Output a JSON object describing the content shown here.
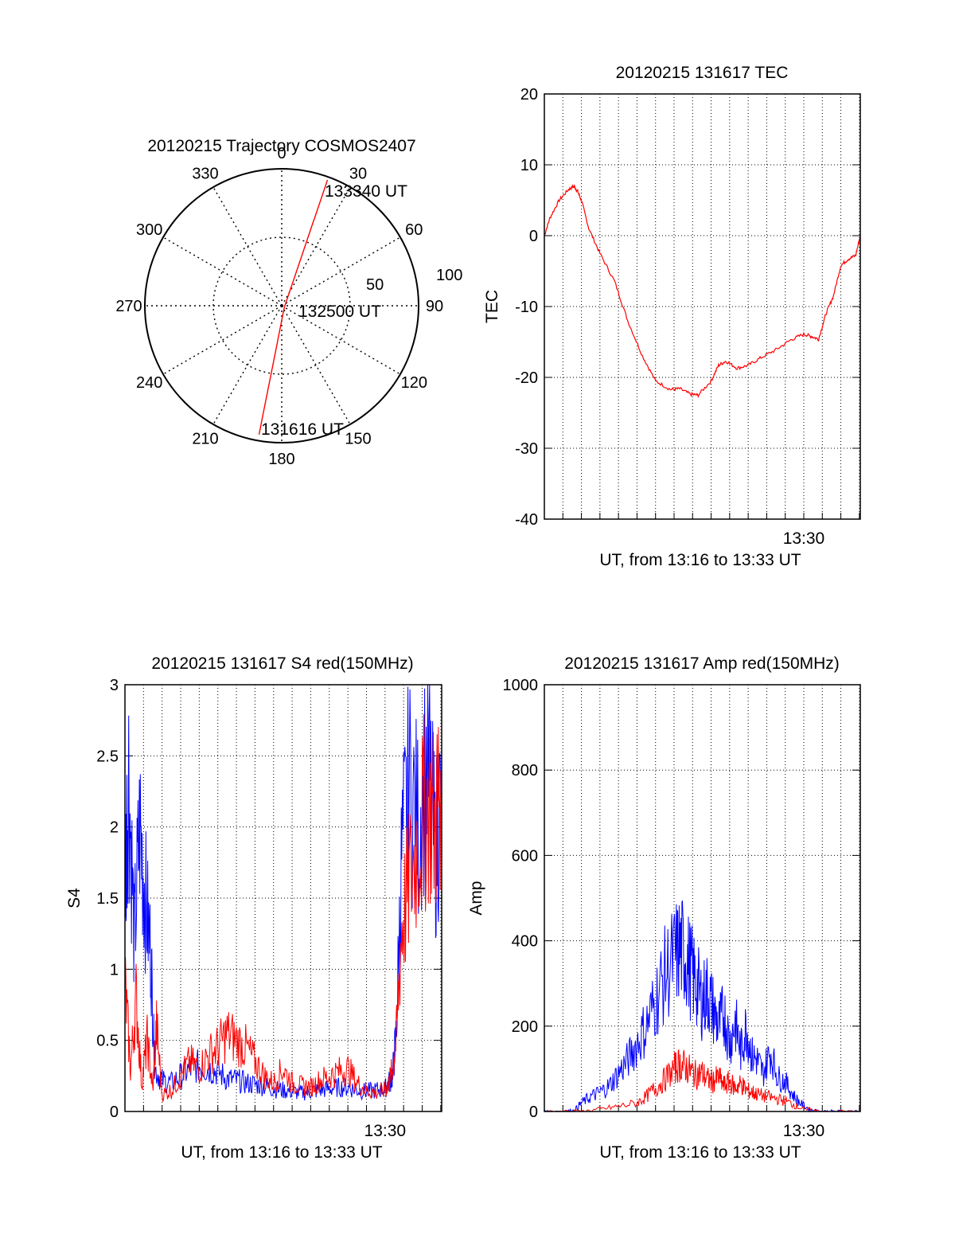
{
  "colors": {
    "red": "#ff0000",
    "blue": "#0000ff",
    "axis": "#000000",
    "grid": "#000000"
  },
  "chart_data": [
    {
      "type": "polar",
      "title": "20120215 Trajectory COSMOS2407",
      "angle_ticks": [
        "0",
        "30",
        "60",
        "90",
        "120",
        "150",
        "180",
        "210",
        "240",
        "270",
        "300",
        "330"
      ],
      "radius_ticks": [
        "50",
        "100"
      ],
      "track": {
        "color": "red",
        "points": [
          {
            "az": 190,
            "el": 4,
            "label": "131616 UT"
          },
          {
            "az": 120,
            "el": 88,
            "label": "132500 UT"
          },
          {
            "az": 20,
            "el": 2,
            "label": "133340 UT"
          }
        ]
      }
    },
    {
      "type": "line",
      "title": "20120215 131617 TEC",
      "xlabel": "UT, from 13:16 to 13:33 UT",
      "ylabel": "TEC",
      "x_unit": "minutes after 13:16",
      "xlim": [
        0,
        17.05
      ],
      "ylim": [
        -40,
        20
      ],
      "yticks": [
        20,
        10,
        0,
        -10,
        -20,
        -30,
        -40
      ],
      "xticks": [
        {
          "x": 14,
          "label": "13:30"
        }
      ],
      "grid": true,
      "series": [
        {
          "color": "red",
          "x": [
            0,
            0.3,
            0.8,
            1.3,
            1.6,
            1.8,
            2.0,
            2.4,
            3.0,
            3.8,
            4.5,
            5.3,
            6.0,
            6.8,
            7.3,
            7.9,
            8.3,
            9.0,
            9.4,
            9.8,
            10.4,
            11.0,
            11.7,
            12.5,
            13.3,
            14.0,
            14.4,
            14.8,
            15.2,
            15.6,
            16.0,
            16.4,
            16.8,
            17.05
          ],
          "values": [
            0,
            2.5,
            5,
            6.5,
            7,
            6.2,
            5,
            1,
            -2.5,
            -6.5,
            -12,
            -17,
            -20.5,
            -21.7,
            -21.6,
            -22.4,
            -22.5,
            -20.5,
            -18.3,
            -17.7,
            -18.7,
            -18.3,
            -17.2,
            -16.1,
            -14.7,
            -13.9,
            -14.2,
            -14.6,
            -11,
            -8.5,
            -4.2,
            -3.3,
            -2.8,
            0
          ]
        }
      ]
    },
    {
      "type": "line",
      "title": "20120215 131617 S4 red(150MHz)",
      "xlabel": "UT, from 13:16 to 13:33 UT",
      "ylabel": "S4",
      "x_unit": "minutes after 13:16",
      "xlim": [
        0,
        17.05
      ],
      "ylim": [
        0,
        3
      ],
      "yticks": [
        3,
        2.5,
        2,
        1.5,
        1,
        0.5,
        0
      ],
      "xticks": [
        {
          "x": 14,
          "label": "13:30"
        }
      ],
      "grid": true,
      "series": [
        {
          "color": "blue",
          "x": [
            0,
            0.2,
            0.5,
            0.8,
            1.1,
            1.4,
            1.6,
            2.0,
            2.5,
            3.0,
            3.5,
            4.0,
            4.5,
            5.0,
            5.5,
            6.0,
            6.5,
            7.0,
            7.5,
            8.0,
            8.5,
            9.0,
            9.5,
            10.0,
            10.5,
            11.0,
            11.5,
            12.0,
            12.5,
            13.0,
            13.5,
            14.0,
            14.2,
            14.4,
            14.6,
            14.9,
            15.3,
            15.8,
            16.3,
            16.7,
            17.0
          ],
          "values": [
            1.6,
            2.4,
            1.2,
            2.0,
            1.5,
            1.1,
            0.3,
            0.22,
            0.2,
            0.25,
            0.3,
            0.32,
            0.3,
            0.28,
            0.23,
            0.22,
            0.2,
            0.19,
            0.18,
            0.16,
            0.15,
            0.14,
            0.13,
            0.14,
            0.15,
            0.16,
            0.17,
            0.17,
            0.15,
            0.14,
            0.15,
            0.16,
            0.2,
            0.25,
            0.55,
            1.8,
            2.3,
            2.0,
            2.5,
            1.8,
            2.2
          ]
        },
        {
          "color": "red",
          "x": [
            0,
            0.3,
            0.6,
            0.9,
            1.2,
            1.5,
            1.7,
            2.0,
            2.5,
            3.0,
            3.5,
            4.0,
            4.5,
            5.0,
            5.5,
            6.0,
            6.5,
            7.0,
            7.5,
            8.0,
            8.5,
            9.0,
            9.5,
            10.0,
            10.5,
            11.0,
            11.5,
            12.0,
            12.5,
            13.0,
            13.5,
            14.0,
            14.2,
            14.4,
            14.6,
            14.9,
            15.3,
            15.8,
            16.3,
            16.7,
            17.0
          ],
          "values": [
            0.9,
            0.3,
            0.8,
            0.2,
            0.5,
            0.15,
            0.6,
            0.12,
            0.15,
            0.25,
            0.35,
            0.3,
            0.4,
            0.45,
            0.55,
            0.5,
            0.45,
            0.35,
            0.25,
            0.2,
            0.3,
            0.2,
            0.18,
            0.17,
            0.22,
            0.25,
            0.28,
            0.3,
            0.2,
            0.15,
            0.13,
            0.15,
            0.2,
            0.3,
            0.5,
            1.3,
            1.6,
            1.9,
            2.2,
            2.0,
            2.4
          ]
        }
      ]
    },
    {
      "type": "line",
      "title": "20120215 131617 Amp red(150MHz)",
      "xlabel": "",
      "ylabel": "Amp",
      "xlabel_shown": "UT, from 13:16 to 13:33 UT",
      "x_unit": "minutes after 13:16",
      "xlim": [
        0,
        17.05
      ],
      "ylim": [
        0,
        1000
      ],
      "yticks": [
        1000,
        800,
        600,
        400,
        200,
        0
      ],
      "xticks": [
        {
          "x": 14,
          "label": "13:30"
        }
      ],
      "grid": true,
      "series": [
        {
          "color": "blue",
          "x": [
            0,
            1.0,
            1.6,
            2.0,
            2.5,
            3.0,
            3.5,
            4.0,
            4.5,
            5.0,
            5.5,
            6.0,
            6.5,
            7.0,
            7.3,
            7.6,
            7.9,
            8.2,
            8.5,
            8.8,
            9.1,
            9.4,
            9.7,
            10.0,
            10.3,
            10.6,
            10.9,
            11.2,
            11.5,
            11.8,
            12.2,
            12.6,
            13.0,
            13.4,
            13.8,
            14.3,
            14.8,
            15.5,
            16.2,
            17.0
          ],
          "values": [
            0,
            0,
            2,
            20,
            35,
            45,
            60,
            90,
            120,
            160,
            200,
            260,
            320,
            360,
            380,
            370,
            330,
            300,
            260,
            280,
            240,
            200,
            230,
            160,
            210,
            140,
            200,
            130,
            120,
            90,
            140,
            80,
            70,
            40,
            20,
            5,
            0,
            0,
            0,
            0
          ]
        },
        {
          "color": "red",
          "x": [
            0,
            2.0,
            3.0,
            4.0,
            5.0,
            5.5,
            6.0,
            6.5,
            7.0,
            7.3,
            7.6,
            7.9,
            8.2,
            8.5,
            8.8,
            9.1,
            9.4,
            9.7,
            10.0,
            10.3,
            10.6,
            10.9,
            11.2,
            11.5,
            12.0,
            12.5,
            13.0,
            13.5,
            14.0,
            15.0,
            17.0
          ],
          "values": [
            0,
            0,
            5,
            12,
            20,
            35,
            55,
            75,
            100,
            110,
            105,
            95,
            85,
            90,
            75,
            70,
            80,
            60,
            70,
            55,
            65,
            50,
            45,
            40,
            35,
            30,
            25,
            15,
            5,
            0,
            0
          ]
        }
      ]
    }
  ]
}
